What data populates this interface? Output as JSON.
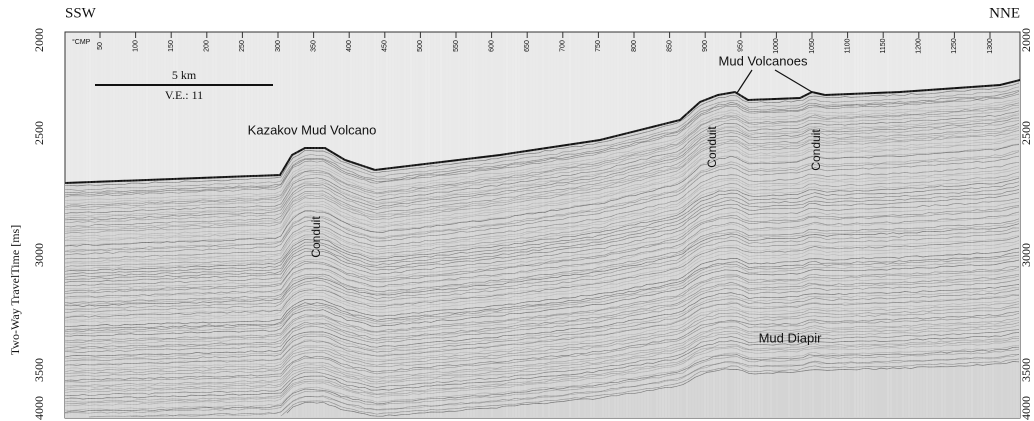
{
  "header": {
    "left": "SSW",
    "right": "NNE"
  },
  "axis": {
    "label": "Two-Way TravelTime [ms]",
    "ticks": [
      "2000",
      "2500",
      "3000",
      "3500",
      "4000"
    ]
  },
  "cmp": {
    "label": "°CMP",
    "ticks": [
      "50",
      "100",
      "150",
      "200",
      "250",
      "300",
      "350",
      "400",
      "450",
      "500",
      "550",
      "600",
      "650",
      "700",
      "750",
      "800",
      "850",
      "900",
      "950",
      "1000",
      "1050",
      "1100",
      "1150",
      "1200",
      "1250",
      "1300"
    ]
  },
  "scale": {
    "distance": "5 km",
    "ve": "V.E.: 11"
  },
  "annotations": {
    "kazakov": "Kazakov Mud Volcano",
    "mud_volcanoes": "Mud Volcanoes",
    "conduits": [
      "Conduit",
      "Conduit",
      "Conduit"
    ],
    "diapir": "Mud Diapir"
  }
}
